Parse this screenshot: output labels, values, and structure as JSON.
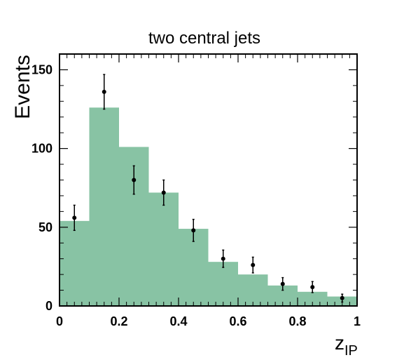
{
  "chart_data": {
    "type": "bar",
    "title": "two central jets",
    "ylabel": "Events",
    "xlabel_main": "z",
    "xlabel_sub": "IP",
    "xlim": [
      0,
      1
    ],
    "ylim": [
      0,
      160
    ],
    "x_ticks": [
      "0",
      "0.2",
      "0.4",
      "0.6",
      "0.8",
      "1"
    ],
    "x_tick_values": [
      0,
      0.2,
      0.4,
      0.6,
      0.8,
      1.0
    ],
    "y_ticks": [
      "0",
      "50",
      "100",
      "150"
    ],
    "y_tick_values": [
      0,
      50,
      100,
      150
    ],
    "histogram": {
      "bin_edges": [
        0,
        0.1,
        0.2,
        0.3,
        0.4,
        0.5,
        0.6,
        0.7,
        0.8,
        0.9,
        1.0
      ],
      "values": [
        54,
        126,
        101,
        72,
        49,
        28,
        20,
        13,
        9,
        6
      ],
      "color": "#88c3a4"
    },
    "data_points": {
      "x": [
        0.05,
        0.15,
        0.25,
        0.35,
        0.45,
        0.55,
        0.65,
        0.75,
        0.85,
        0.95
      ],
      "y": [
        56,
        136,
        80,
        72,
        48,
        30,
        26,
        14,
        12,
        5
      ],
      "err_low": [
        8,
        11,
        9,
        8,
        7,
        5.5,
        5,
        4,
        3.5,
        2.5
      ],
      "err_high": [
        8,
        11,
        9,
        8,
        7,
        5.5,
        5,
        4,
        3.5,
        2.5
      ],
      "color": "#000000"
    },
    "grid": false
  }
}
